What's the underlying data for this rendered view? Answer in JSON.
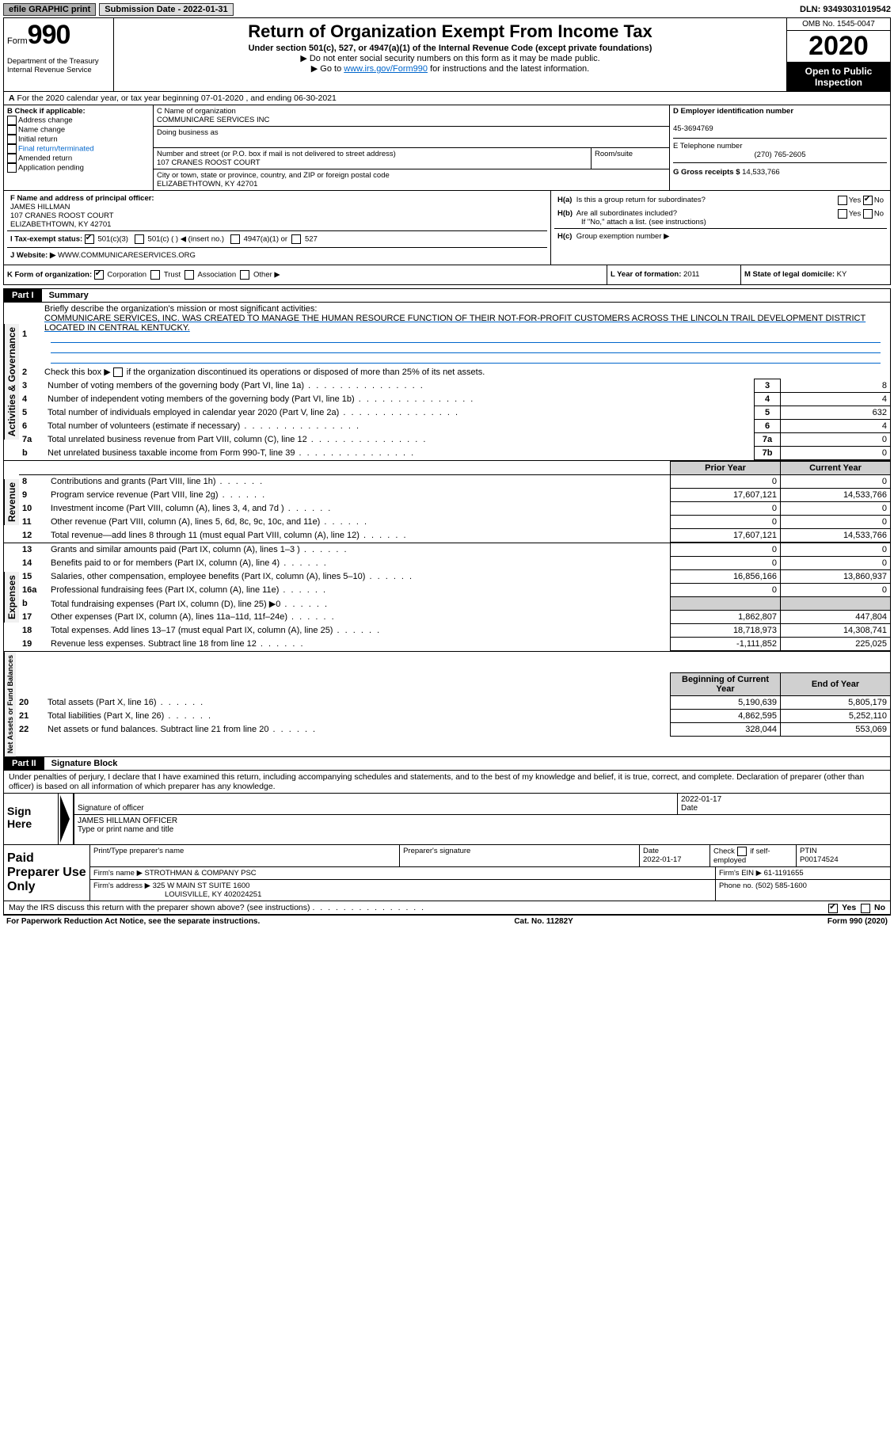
{
  "topbar": {
    "efile": "efile GRAPHIC print",
    "submission": "Submission Date - 2022-01-31",
    "dln": "DLN: 93493031019542"
  },
  "header": {
    "form_word": "Form",
    "form_num": "990",
    "dept": "Department of the Treasury\nInternal Revenue Service",
    "title": "Return of Organization Exempt From Income Tax",
    "sub": "Under section 501(c), 527, or 4947(a)(1) of the Internal Revenue Code (except private foundations)",
    "note1": "▶ Do not enter social security numbers on this form as it may be made public.",
    "note2_pre": "▶ Go to ",
    "note2_link": "www.irs.gov/Form990",
    "note2_post": " for instructions and the latest information.",
    "omb": "OMB No. 1545-0047",
    "year": "2020",
    "oti": "Open to Public Inspection"
  },
  "lineA": "For the 2020 calendar year, or tax year beginning 07-01-2020    , and ending 06-30-2021",
  "boxB": {
    "legend": "B Check if applicable:",
    "items": [
      "Address change",
      "Name change",
      "Initial return",
      "Final return/terminated",
      "Amended return",
      "Application pending"
    ]
  },
  "boxC": {
    "name_label": "C Name of organization",
    "name": "COMMUNICARE SERVICES INC",
    "dba_label": "Doing business as",
    "addr_label": "Number and street (or P.O. box if mail is not delivered to street address)",
    "room_label": "Room/suite",
    "addr": "107 CRANES ROOST COURT",
    "city_label": "City or town, state or province, country, and ZIP or foreign postal code",
    "city": "ELIZABETHTOWN, KY  42701"
  },
  "boxD": {
    "label": "D Employer identification number",
    "val": "45-3694769"
  },
  "boxE": {
    "label": "E Telephone number",
    "val": "(270) 765-2605"
  },
  "boxG": {
    "label": "G Gross receipts $",
    "val": "14,533,766"
  },
  "boxF": {
    "label": "F Name and address of principal officer:",
    "name": "JAMES HILLMAN",
    "addr1": "107 CRANES ROOST COURT",
    "addr2": "ELIZABETHTOWN, KY  42701"
  },
  "boxH": {
    "a": "Is this a group return for subordinates?",
    "b": "Are all subordinates included?",
    "b_note": "If \"No,\" attach a list. (see instructions)",
    "c": "Group exemption number ▶"
  },
  "yes": "Yes",
  "no": "No",
  "taxI": {
    "label": "I      Tax-exempt status:",
    "o1": "501(c)(3)",
    "o2": "501(c) (  ) ◀ (insert no.)",
    "o3": "4947(a)(1) or",
    "o4": "527"
  },
  "lineJ": {
    "label": "J     Website: ▶",
    "val": "WWW.COMMUNICARESERVICES.ORG"
  },
  "lineK": {
    "label": "K Form of organization:",
    "o1": "Corporation",
    "o2": "Trust",
    "o3": "Association",
    "o4": "Other ▶"
  },
  "lineL": {
    "label": "L Year of formation:",
    "val": "2011"
  },
  "lineM": {
    "label": "M State of legal domicile:",
    "val": "KY"
  },
  "part1": {
    "num": "Part I",
    "title": "Summary"
  },
  "sideLabels": {
    "gov": "Activities & Governance",
    "rev": "Revenue",
    "exp": "Expenses",
    "net": "Net Assets or Fund Balances"
  },
  "gov": {
    "l1": "Briefly describe the organization's mission or most significant activities:",
    "l1_text": "COMMUNICARE SERVICES, INC. WAS CREATED TO MANAGE THE HUMAN RESOURCE FUNCTION OF THEIR NOT-FOR-PROFIT CUSTOMERS ACROSS THE LINCOLN TRAIL DEVELOPMENT DISTRICT LOCATED IN CENTRAL KENTUCKY.",
    "l2": "Check this box ▶        if the organization discontinued its operations or disposed of more than 25% of its net assets.",
    "rows": [
      {
        "n": "3",
        "text": "Number of voting members of the governing body (Part VI, line 1a)",
        "box": "3",
        "val": "8"
      },
      {
        "n": "4",
        "text": "Number of independent voting members of the governing body (Part VI, line 1b)",
        "box": "4",
        "val": "4"
      },
      {
        "n": "5",
        "text": "Total number of individuals employed in calendar year 2020 (Part V, line 2a)",
        "box": "5",
        "val": "632"
      },
      {
        "n": "6",
        "text": "Total number of volunteers (estimate if necessary)",
        "box": "6",
        "val": "4"
      },
      {
        "n": "7a",
        "text": "Total unrelated business revenue from Part VIII, column (C), line 12",
        "box": "7a",
        "val": "0"
      },
      {
        "n": "b",
        "text": "Net unrelated business taxable income from Form 990-T, line 39",
        "box": "7b",
        "val": "0"
      }
    ],
    "n1": "1",
    "n2": "2"
  },
  "col_hdr": {
    "prior": "Prior Year",
    "current": "Current Year"
  },
  "rev": {
    "rows": [
      {
        "n": "8",
        "text": "Contributions and grants (Part VIII, line 1h)",
        "p": "0",
        "c": "0"
      },
      {
        "n": "9",
        "text": "Program service revenue (Part VIII, line 2g)",
        "p": "17,607,121",
        "c": "14,533,766"
      },
      {
        "n": "10",
        "text": "Investment income (Part VIII, column (A), lines 3, 4, and 7d )",
        "p": "0",
        "c": "0"
      },
      {
        "n": "11",
        "text": "Other revenue (Part VIII, column (A), lines 5, 6d, 8c, 9c, 10c, and 11e)",
        "p": "0",
        "c": "0"
      },
      {
        "n": "12",
        "text": "Total revenue—add lines 8 through 11 (must equal Part VIII, column (A), line 12)",
        "p": "17,607,121",
        "c": "14,533,766"
      }
    ]
  },
  "exp": {
    "rows": [
      {
        "n": "13",
        "text": "Grants and similar amounts paid (Part IX, column (A), lines 1–3 )",
        "p": "0",
        "c": "0"
      },
      {
        "n": "14",
        "text": "Benefits paid to or for members (Part IX, column (A), line 4)",
        "p": "0",
        "c": "0"
      },
      {
        "n": "15",
        "text": "Salaries, other compensation, employee benefits (Part IX, column (A), lines 5–10)",
        "p": "16,856,166",
        "c": "13,860,937"
      },
      {
        "n": "16a",
        "text": "Professional fundraising fees (Part IX, column (A), line 11e)",
        "p": "0",
        "c": "0"
      },
      {
        "n": "b",
        "text": "Total fundraising expenses (Part IX, column (D), line 25) ▶0",
        "p": "",
        "c": "",
        "shade": true
      },
      {
        "n": "17",
        "text": "Other expenses (Part IX, column (A), lines 11a–11d, 11f–24e)",
        "p": "1,862,807",
        "c": "447,804"
      },
      {
        "n": "18",
        "text": "Total expenses. Add lines 13–17 (must equal Part IX, column (A), line 25)",
        "p": "18,718,973",
        "c": "14,308,741"
      },
      {
        "n": "19",
        "text": "Revenue less expenses. Subtract line 18 from line 12",
        "p": "-1,111,852",
        "c": "225,025"
      }
    ]
  },
  "net": {
    "hdr_b": "Beginning of Current Year",
    "hdr_e": "End of Year",
    "rows": [
      {
        "n": "20",
        "text": "Total assets (Part X, line 16)",
        "p": "5,190,639",
        "c": "5,805,179"
      },
      {
        "n": "21",
        "text": "Total liabilities (Part X, line 26)",
        "p": "4,862,595",
        "c": "5,252,110"
      },
      {
        "n": "22",
        "text": "Net assets or fund balances. Subtract line 21 from line 20",
        "p": "328,044",
        "c": "553,069"
      }
    ]
  },
  "part2": {
    "num": "Part II",
    "title": "Signature Block"
  },
  "declaration": "Under penalties of perjury, I declare that I have examined this return, including accompanying schedules and statements, and to the best of my knowledge and belief, it is true, correct, and complete. Declaration of preparer (other than officer) is based on all information of which preparer has any knowledge.",
  "sign": {
    "here": "Sign Here",
    "sig_label": "Signature of officer",
    "date_label": "Date",
    "date": "2022-01-17",
    "name": "JAMES HILLMAN  OFFICER",
    "name_label": "Type or print name and title"
  },
  "paid": {
    "label": "Paid Preparer Use Only",
    "h1": "Print/Type preparer's name",
    "h2": "Preparer's signature",
    "h3": "Date",
    "date": "2022-01-17",
    "h4_pre": "Check",
    "h4_post": "if self-employed",
    "h5": "PTIN",
    "ptin": "P00174524",
    "firm_name_l": "Firm's name    ▶",
    "firm_name": "STROTHMAN & COMPANY PSC",
    "firm_ein_l": "Firm's EIN ▶",
    "firm_ein": "61-1191655",
    "firm_addr_l": "Firm's address ▶",
    "firm_addr1": "325 W MAIN ST SUITE 1600",
    "firm_addr2": "LOUISVILLE, KY  402024251",
    "phone_l": "Phone no.",
    "phone": "(502) 585-1600"
  },
  "may_irs": "May the IRS discuss this return with the preparer shown above? (see instructions)",
  "footer": {
    "left": "For Paperwork Reduction Act Notice, see the separate instructions.",
    "mid": "Cat. No. 11282Y",
    "right": "Form 990 (2020)"
  }
}
